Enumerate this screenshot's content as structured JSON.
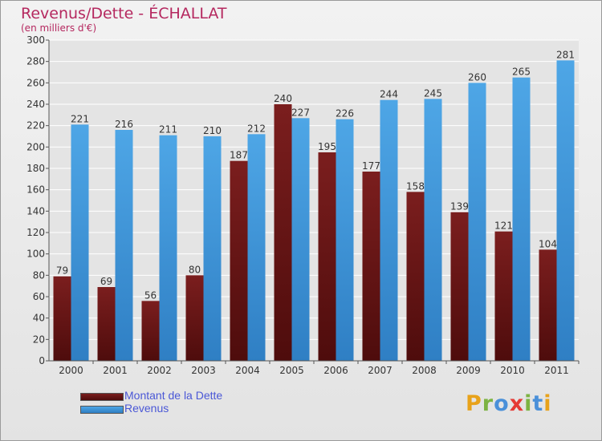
{
  "header": {
    "title": "Revenus/Dette - ÉCHALLAT",
    "subtitle": "(en milliers d'€)"
  },
  "colors": {
    "debt": "#7b1e1e",
    "debt_dark": "#4e0c0c",
    "revenue": "#4ea6e6",
    "revenue_dark": "#2f7fc4",
    "grid": "#ffffff",
    "title": "#b5285f",
    "legend_text": "#4a57d6"
  },
  "legend": {
    "debt_label": "Montant de la Dette",
    "revenue_label": "Revenus"
  },
  "logo": {
    "text": "Proxiti",
    "letters": [
      {
        "char": "P",
        "color": "#e8a21a"
      },
      {
        "char": "r",
        "color": "#7cb342"
      },
      {
        "char": "o",
        "color": "#4a90d9"
      },
      {
        "char": "x",
        "color": "#e53935"
      },
      {
        "char": "i",
        "color": "#7cb342"
      },
      {
        "char": "t",
        "color": "#4a90d9"
      },
      {
        "char": "i",
        "color": "#e8a21a"
      }
    ]
  },
  "chart_data": {
    "type": "bar",
    "title": "Revenus/Dette - ÉCHALLAT",
    "ylabel": "(en milliers d'€)",
    "xlabel": "",
    "categories": [
      "2000",
      "2001",
      "2002",
      "2003",
      "2004",
      "2005",
      "2006",
      "2007",
      "2008",
      "2009",
      "2010",
      "2011"
    ],
    "series": [
      {
        "name": "Montant de la Dette",
        "values": [
          79,
          69,
          56,
          80,
          187,
          240,
          195,
          177,
          158,
          139,
          121,
          104
        ]
      },
      {
        "name": "Revenus",
        "values": [
          221,
          216,
          211,
          210,
          212,
          227,
          226,
          244,
          245,
          260,
          265,
          281
        ]
      }
    ],
    "ylim": [
      0,
      300
    ],
    "ytick_step": 20,
    "grid": true,
    "legend_position": "bottom-left"
  }
}
